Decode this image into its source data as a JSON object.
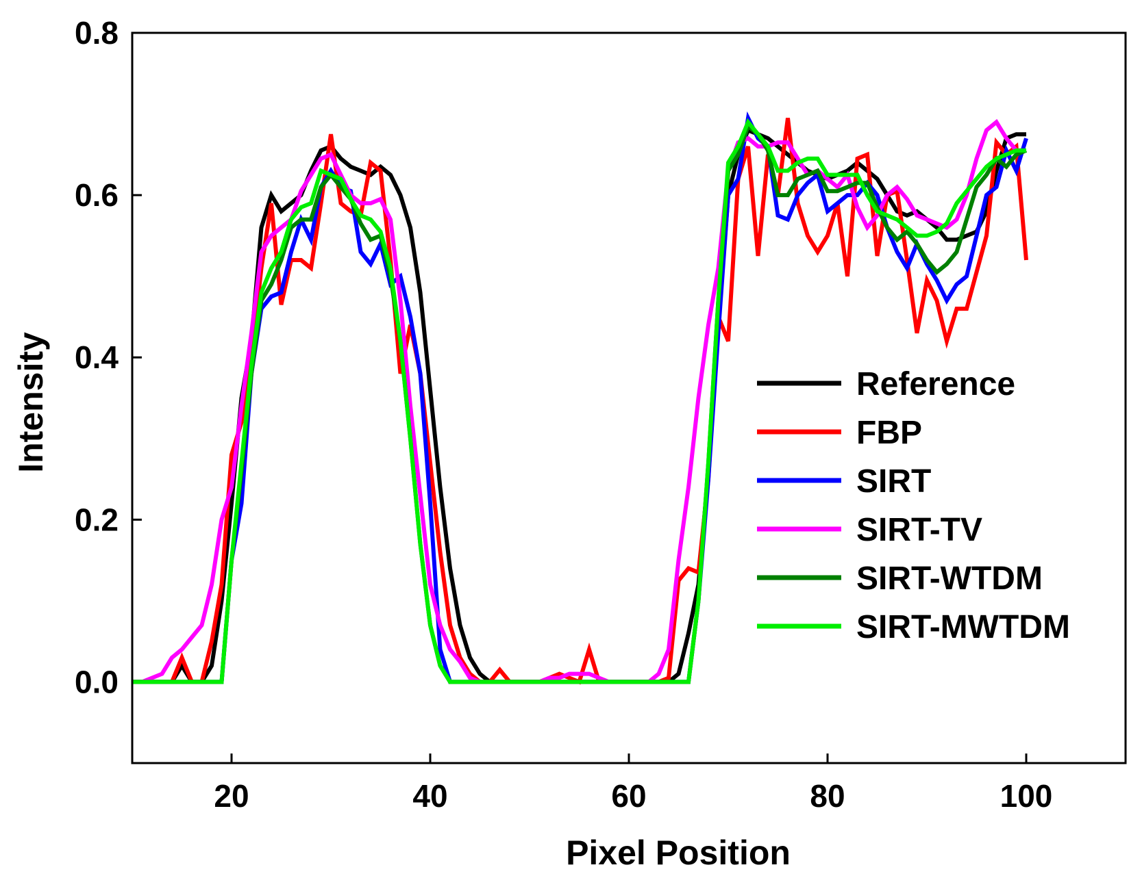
{
  "chart_data": {
    "type": "line",
    "title": "",
    "xlabel": "Pixel Position",
    "ylabel": "Intensity",
    "xlim": [
      10,
      110
    ],
    "ylim": [
      -0.1,
      0.8
    ],
    "xticks": [
      20,
      40,
      60,
      80,
      100
    ],
    "xtick_labels": [
      "20",
      "40",
      "60",
      "80",
      "100"
    ],
    "yticks": [
      0.0,
      0.2,
      0.4,
      0.6,
      0.8
    ],
    "ytick_labels": [
      "0.0",
      "0.2",
      "0.4",
      "0.6",
      "0.8"
    ],
    "grid": false,
    "legend_position": "right-center",
    "x": [
      10,
      11,
      12,
      13,
      14,
      15,
      16,
      17,
      18,
      19,
      20,
      21,
      22,
      23,
      24,
      25,
      26,
      27,
      28,
      29,
      30,
      31,
      32,
      33,
      34,
      35,
      36,
      37,
      38,
      39,
      40,
      41,
      42,
      43,
      44,
      45,
      46,
      47,
      48,
      49,
      50,
      51,
      52,
      53,
      54,
      55,
      56,
      57,
      58,
      59,
      60,
      61,
      62,
      63,
      64,
      65,
      66,
      67,
      68,
      69,
      70,
      71,
      72,
      73,
      74,
      75,
      76,
      77,
      78,
      79,
      80,
      81,
      82,
      83,
      84,
      85,
      86,
      87,
      88,
      89,
      90,
      91,
      92,
      93,
      94,
      95,
      96,
      97,
      98,
      99,
      100
    ],
    "series": [
      {
        "name": "Reference",
        "color": "#000000",
        "values": [
          0,
          0,
          0,
          0,
          0,
          0.02,
          0,
          0,
          0.02,
          0.1,
          0.22,
          0.35,
          0.42,
          0.56,
          0.6,
          0.58,
          0.59,
          0.6,
          0.63,
          0.655,
          0.66,
          0.645,
          0.635,
          0.63,
          0.625,
          0.635,
          0.625,
          0.6,
          0.56,
          0.48,
          0.36,
          0.24,
          0.14,
          0.07,
          0.03,
          0.01,
          0,
          0,
          0,
          0,
          0,
          0,
          0,
          0,
          0,
          0,
          0,
          0,
          0,
          0,
          0,
          0,
          0,
          0,
          0,
          0.01,
          0.06,
          0.12,
          0.26,
          0.44,
          0.6,
          0.65,
          0.68,
          0.675,
          0.67,
          0.66,
          0.65,
          0.64,
          0.63,
          0.625,
          0.62,
          0.625,
          0.63,
          0.64,
          0.63,
          0.62,
          0.6,
          0.58,
          0.575,
          0.58,
          0.57,
          0.56,
          0.545,
          0.545,
          0.55,
          0.555,
          0.58,
          0.63,
          0.67,
          0.675,
          0.675
        ]
      },
      {
        "name": "FBP",
        "color": "#ff0000",
        "values": [
          0,
          0,
          0,
          0,
          0,
          0.03,
          0,
          0,
          0.05,
          0.12,
          0.28,
          0.32,
          0.4,
          0.51,
          0.59,
          0.465,
          0.52,
          0.52,
          0.51,
          0.59,
          0.675,
          0.59,
          0.58,
          0.575,
          0.64,
          0.63,
          0.52,
          0.38,
          0.44,
          0.38,
          0.27,
          0.16,
          0.07,
          0.03,
          0.01,
          0,
          0,
          0.015,
          0,
          0,
          0,
          0,
          0.005,
          0.01,
          0.005,
          0,
          0.04,
          0,
          0,
          0,
          0,
          0,
          0,
          0,
          0.005,
          0.125,
          0.14,
          0.135,
          0.25,
          0.45,
          0.42,
          0.62,
          0.66,
          0.525,
          0.65,
          0.6,
          0.695,
          0.59,
          0.55,
          0.53,
          0.55,
          0.59,
          0.5,
          0.645,
          0.65,
          0.525,
          0.6,
          0.605,
          0.52,
          0.43,
          0.495,
          0.47,
          0.42,
          0.46,
          0.46,
          0.505,
          0.55,
          0.665,
          0.65,
          0.66,
          0.52
        ]
      },
      {
        "name": "SIRT",
        "color": "#0000ff",
        "values": [
          0,
          0,
          0,
          0,
          0,
          0,
          0,
          0,
          0,
          0,
          0.15,
          0.22,
          0.38,
          0.46,
          0.475,
          0.48,
          0.53,
          0.57,
          0.545,
          0.61,
          0.63,
          0.61,
          0.605,
          0.53,
          0.515,
          0.54,
          0.49,
          0.5,
          0.45,
          0.38,
          0.22,
          0.04,
          0,
          0,
          0,
          0,
          0,
          0,
          0,
          0,
          0,
          0,
          0,
          0,
          0,
          0,
          0,
          0,
          0,
          0,
          0,
          0,
          0,
          0,
          0,
          0,
          0,
          0.1,
          0.25,
          0.43,
          0.6,
          0.62,
          0.695,
          0.67,
          0.66,
          0.575,
          0.57,
          0.6,
          0.615,
          0.625,
          0.58,
          0.59,
          0.6,
          0.6,
          0.615,
          0.6,
          0.56,
          0.53,
          0.51,
          0.54,
          0.515,
          0.495,
          0.47,
          0.49,
          0.5,
          0.55,
          0.6,
          0.61,
          0.655,
          0.63,
          0.67
        ]
      },
      {
        "name": "SIRT-TV",
        "color": "#ff00ff",
        "values": [
          0,
          0,
          0.005,
          0.01,
          0.03,
          0.04,
          0.055,
          0.07,
          0.12,
          0.2,
          0.24,
          0.34,
          0.43,
          0.53,
          0.55,
          0.56,
          0.57,
          0.605,
          0.625,
          0.645,
          0.65,
          0.625,
          0.6,
          0.59,
          0.59,
          0.595,
          0.57,
          0.47,
          0.34,
          0.23,
          0.12,
          0.07,
          0.04,
          0.025,
          0.005,
          0,
          0,
          0,
          0,
          0,
          0,
          0,
          0.005,
          0.005,
          0.01,
          0.01,
          0.01,
          0.005,
          0,
          0,
          0,
          0,
          0,
          0.01,
          0.04,
          0.15,
          0.24,
          0.35,
          0.44,
          0.51,
          0.63,
          0.665,
          0.67,
          0.66,
          0.66,
          0.665,
          0.665,
          0.645,
          0.625,
          0.63,
          0.62,
          0.61,
          0.625,
          0.585,
          0.56,
          0.575,
          0.6,
          0.61,
          0.595,
          0.575,
          0.57,
          0.565,
          0.56,
          0.57,
          0.6,
          0.645,
          0.68,
          0.69,
          0.67,
          0.655,
          0.655
        ]
      },
      {
        "name": "SIRT-WTDM",
        "color": "#008000",
        "values": [
          0,
          0,
          0,
          0,
          0,
          0,
          0,
          0,
          0,
          0,
          0.15,
          0.26,
          0.38,
          0.47,
          0.49,
          0.52,
          0.56,
          0.57,
          0.57,
          0.61,
          0.625,
          0.61,
          0.595,
          0.565,
          0.545,
          0.55,
          0.5,
          0.42,
          0.3,
          0.17,
          0.07,
          0.02,
          0,
          0,
          0,
          0,
          0,
          0,
          0,
          0,
          0,
          0,
          0,
          0,
          0,
          0,
          0,
          0,
          0,
          0,
          0,
          0,
          0,
          0,
          0,
          0,
          0,
          0.1,
          0.27,
          0.47,
          0.63,
          0.65,
          0.685,
          0.675,
          0.655,
          0.6,
          0.6,
          0.62,
          0.625,
          0.63,
          0.605,
          0.605,
          0.61,
          0.615,
          0.615,
          0.585,
          0.56,
          0.545,
          0.555,
          0.54,
          0.52,
          0.505,
          0.515,
          0.53,
          0.57,
          0.61,
          0.625,
          0.645,
          0.635,
          0.65,
          0.655
        ]
      },
      {
        "name": "SIRT-MWTDM",
        "color": "#00ee00",
        "values": [
          0,
          0,
          0,
          0,
          0,
          0,
          0,
          0,
          0,
          0,
          0.15,
          0.27,
          0.39,
          0.48,
          0.51,
          0.53,
          0.57,
          0.585,
          0.59,
          0.63,
          0.625,
          0.62,
          0.595,
          0.575,
          0.57,
          0.555,
          0.51,
          0.42,
          0.3,
          0.17,
          0.07,
          0.02,
          0,
          0,
          0,
          0,
          0,
          0,
          0,
          0,
          0,
          0,
          0,
          0,
          0,
          0,
          0,
          0,
          0,
          0,
          0,
          0,
          0,
          0,
          0,
          0,
          0,
          0.1,
          0.27,
          0.47,
          0.64,
          0.66,
          0.69,
          0.675,
          0.66,
          0.63,
          0.63,
          0.64,
          0.645,
          0.645,
          0.625,
          0.625,
          0.625,
          0.625,
          0.6,
          0.58,
          0.575,
          0.57,
          0.56,
          0.55,
          0.55,
          0.555,
          0.565,
          0.59,
          0.605,
          0.62,
          0.635,
          0.645,
          0.65,
          0.655,
          0.655
        ]
      }
    ]
  }
}
